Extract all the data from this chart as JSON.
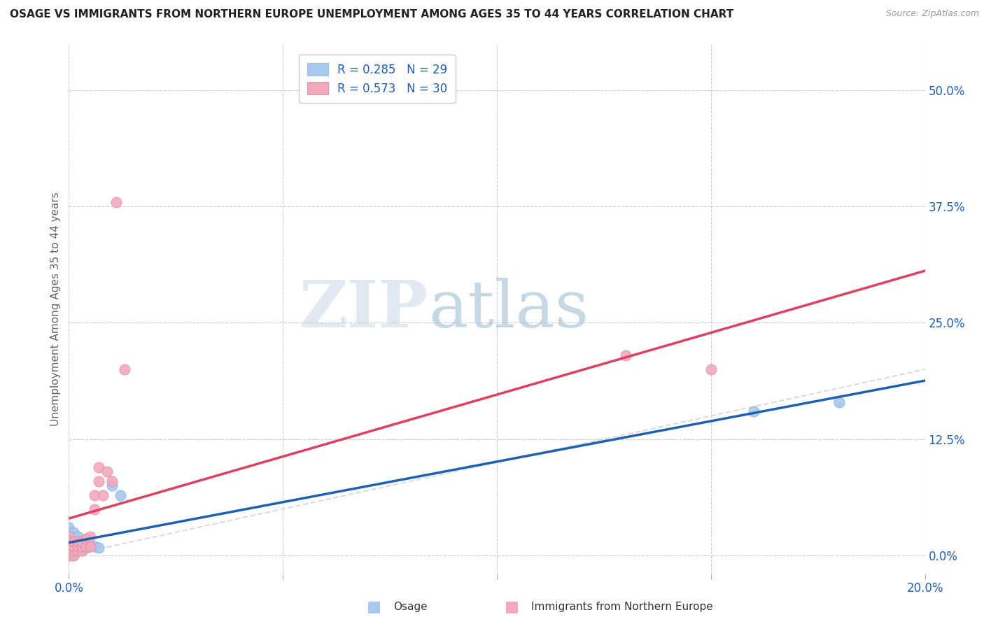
{
  "title": "OSAGE VS IMMIGRANTS FROM NORTHERN EUROPE UNEMPLOYMENT AMONG AGES 35 TO 44 YEARS CORRELATION CHART",
  "source": "Source: ZipAtlas.com",
  "ylabel": "Unemployment Among Ages 35 to 44 years",
  "xlim": [
    0.0,
    0.2
  ],
  "ylim": [
    -0.02,
    0.55
  ],
  "yticks": [
    0.0,
    0.125,
    0.25,
    0.375,
    0.5
  ],
  "ytick_labels": [
    "0.0%",
    "12.5%",
    "25.0%",
    "37.5%",
    "50.0%"
  ],
  "xticks": [
    0.0,
    0.05,
    0.1,
    0.15,
    0.2
  ],
  "xtick_labels": [
    "0.0%",
    "",
    "",
    "",
    "20.0%"
  ],
  "watermark_zip": "ZIP",
  "watermark_atlas": "atlas",
  "label1": "Osage",
  "label2": "Immigrants from Northern Europe",
  "color1": "#a8c8f0",
  "color2": "#f4a8bc",
  "line_color1": "#2060b0",
  "line_color2": "#e04060",
  "identity_color": "#cccccc",
  "background_color": "#ffffff",
  "osage_x": [
    0.0,
    0.0,
    0.0,
    0.0,
    0.0,
    0.0,
    0.0,
    0.001,
    0.001,
    0.001,
    0.001,
    0.001,
    0.001,
    0.002,
    0.002,
    0.002,
    0.002,
    0.003,
    0.003,
    0.003,
    0.004,
    0.004,
    0.005,
    0.006,
    0.007,
    0.01,
    0.012,
    0.16,
    0.18
  ],
  "osage_y": [
    0.0,
    0.003,
    0.007,
    0.012,
    0.018,
    0.024,
    0.03,
    0.0,
    0.005,
    0.01,
    0.015,
    0.02,
    0.025,
    0.005,
    0.01,
    0.015,
    0.02,
    0.005,
    0.01,
    0.015,
    0.008,
    0.013,
    0.01,
    0.01,
    0.008,
    0.075,
    0.065,
    0.155,
    0.165
  ],
  "immig_x": [
    0.0,
    0.0,
    0.0,
    0.0,
    0.0,
    0.001,
    0.001,
    0.001,
    0.001,
    0.002,
    0.002,
    0.002,
    0.003,
    0.003,
    0.003,
    0.004,
    0.004,
    0.005,
    0.005,
    0.006,
    0.006,
    0.007,
    0.007,
    0.008,
    0.009,
    0.01,
    0.011,
    0.013,
    0.13,
    0.15
  ],
  "immig_y": [
    0.0,
    0.005,
    0.01,
    0.015,
    0.02,
    0.0,
    0.005,
    0.01,
    0.015,
    0.005,
    0.01,
    0.015,
    0.005,
    0.01,
    0.015,
    0.01,
    0.018,
    0.01,
    0.02,
    0.05,
    0.065,
    0.08,
    0.095,
    0.065,
    0.09,
    0.08,
    0.38,
    0.2,
    0.215,
    0.2
  ]
}
